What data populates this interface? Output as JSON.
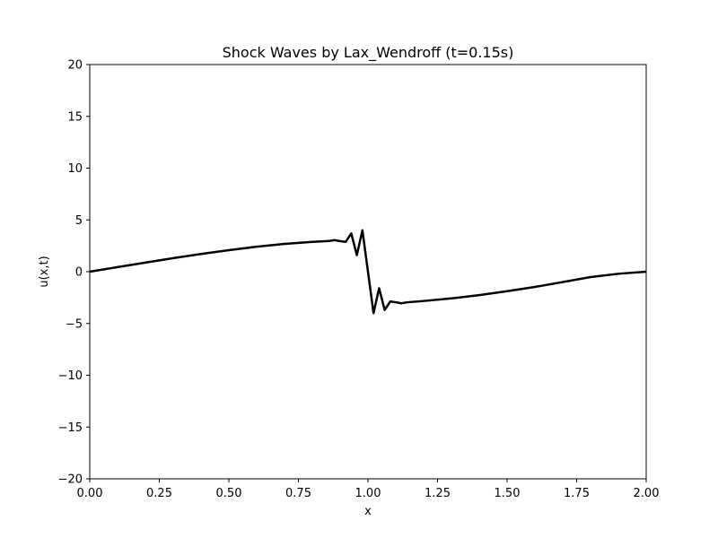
{
  "chart_data": {
    "type": "line",
    "title": "Shock Waves by Lax_Wendroff (t=0.15s)",
    "xlabel": "x",
    "ylabel": "u(x,t)",
    "xlim": [
      0.0,
      2.0
    ],
    "ylim": [
      -20,
      20
    ],
    "xticks": [
      0.0,
      0.25,
      0.5,
      0.75,
      1.0,
      1.25,
      1.5,
      1.75,
      2.0
    ],
    "xtick_labels": [
      "0.00",
      "0.25",
      "0.50",
      "0.75",
      "1.00",
      "1.25",
      "1.50",
      "1.75",
      "2.00"
    ],
    "yticks": [
      -20,
      -15,
      -10,
      -5,
      0,
      5,
      10,
      15,
      20
    ],
    "ytick_labels": [
      "−20",
      "−15",
      "−10",
      "−5",
      "0",
      "5",
      "10",
      "15",
      "20"
    ],
    "grid": false,
    "series": [
      {
        "color": "#000000",
        "x": [
          0.0,
          0.1,
          0.2,
          0.3,
          0.4,
          0.5,
          0.6,
          0.7,
          0.8,
          0.86,
          0.88,
          0.9,
          0.92,
          0.94,
          0.96,
          0.98,
          1.0,
          1.02,
          1.04,
          1.06,
          1.08,
          1.1,
          1.12,
          1.14,
          1.2,
          1.3,
          1.4,
          1.5,
          1.6,
          1.7,
          1.8,
          1.9,
          2.0
        ],
        "y": [
          0.0,
          0.44,
          0.88,
          1.31,
          1.71,
          2.08,
          2.41,
          2.68,
          2.88,
          2.96,
          3.05,
          2.95,
          2.88,
          3.7,
          1.6,
          4.0,
          0.0,
          -4.0,
          -1.6,
          -3.7,
          -2.88,
          -2.95,
          -3.05,
          -2.96,
          -2.83,
          -2.58,
          -2.26,
          -1.88,
          -1.47,
          -1.0,
          -0.52,
          -0.2,
          0.0
        ]
      }
    ]
  }
}
